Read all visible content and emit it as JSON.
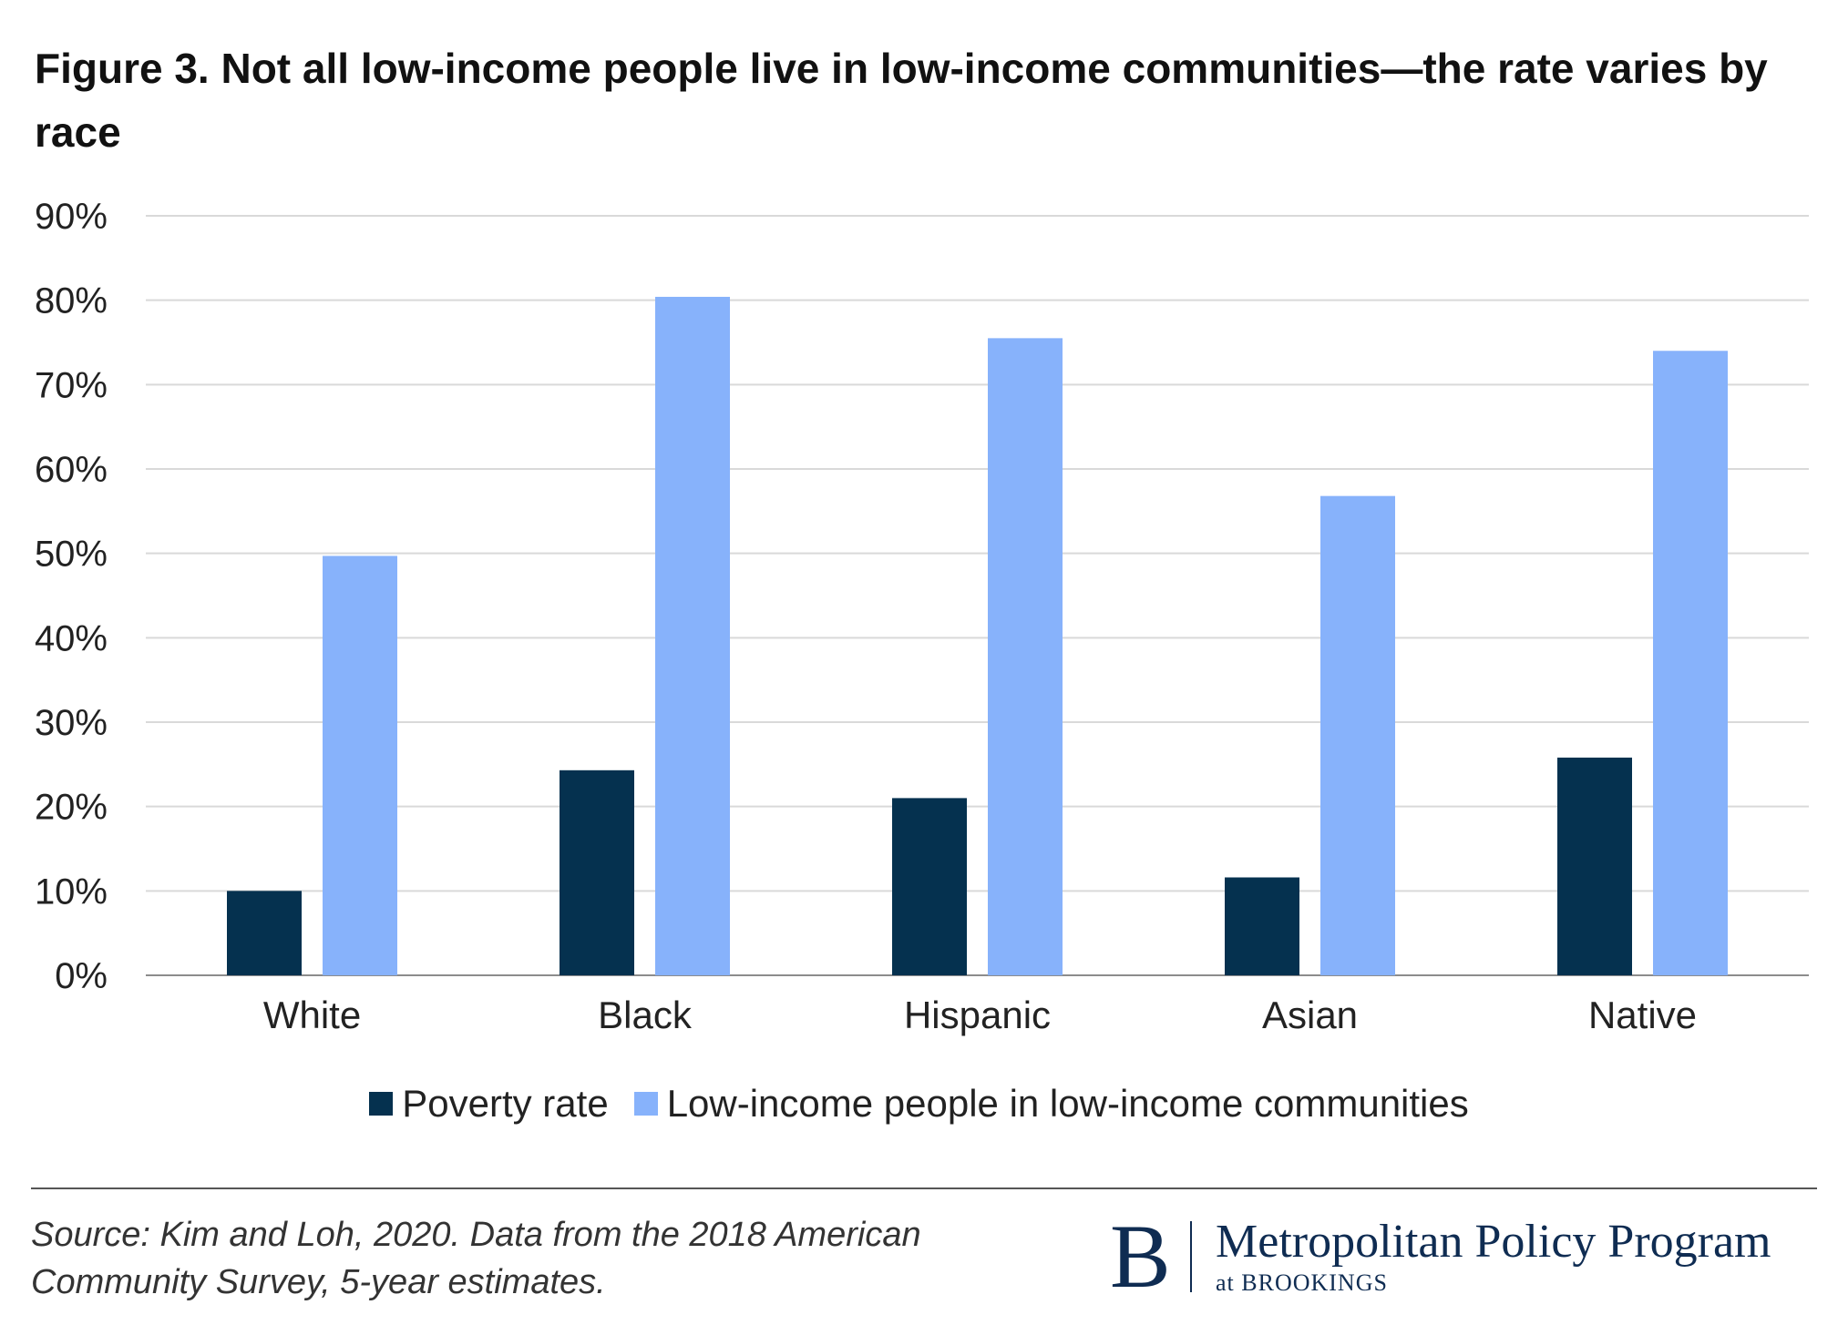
{
  "chart_data": {
    "type": "bar",
    "title": "Figure 3. Not all low-income people live in low-income communities—the rate varies by race",
    "categories": [
      "White",
      "Black",
      "Hispanic",
      "Asian",
      "Native"
    ],
    "series": [
      {
        "name": "Poverty rate",
        "color": "#05314f",
        "values": [
          10.0,
          24.3,
          21.0,
          11.6,
          25.8
        ]
      },
      {
        "name": "Low-income people in low-income communities",
        "color": "#87b2fb",
        "values": [
          49.7,
          80.4,
          75.5,
          56.8,
          74.0
        ]
      }
    ],
    "ylim": [
      0,
      90
    ],
    "yticks": [
      0,
      10,
      20,
      30,
      40,
      50,
      60,
      70,
      80,
      90
    ],
    "ytick_labels": [
      "0%",
      "10%",
      "20%",
      "30%",
      "40%",
      "50%",
      "60%",
      "70%",
      "80%",
      "90%"
    ],
    "xlabel": "",
    "ylabel": "",
    "grid": true,
    "legend_position": "bottom"
  },
  "footer": {
    "source_text": "Source: Kim and Loh, 2020. Data from the 2018 American Community Survey, 5-year estimates.",
    "logo_letter": "B",
    "logo_main": "Metropolitan Policy Program",
    "logo_sub": "at BROOKINGS"
  }
}
